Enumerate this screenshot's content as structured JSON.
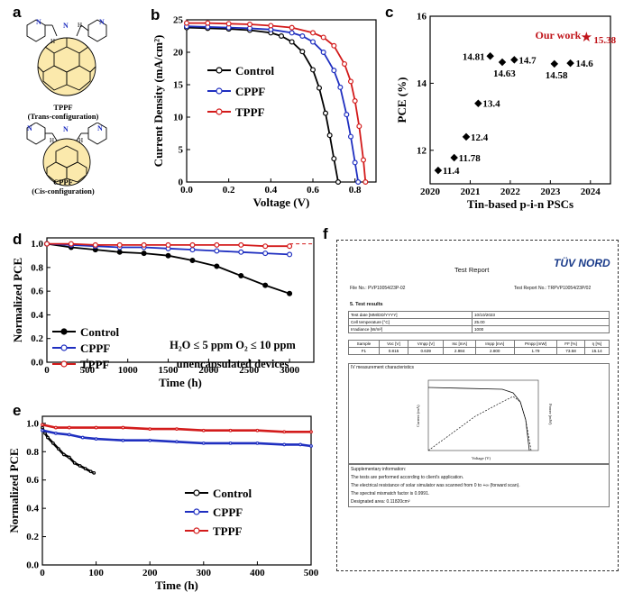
{
  "panels": {
    "a": "a",
    "b": "b",
    "c": "c",
    "d": "d",
    "e": "e",
    "f": "f"
  },
  "molecules": {
    "tppf": {
      "name": "TPPF",
      "config": "(Trans-configuration)"
    },
    "cppf": {
      "name": "CPPF",
      "config": "(Cis-configuration)"
    },
    "atom_n": "N",
    "atom_h": "H"
  },
  "chart_data": [
    {
      "id": "b",
      "type": "line",
      "xlabel": "Voltage (V)",
      "ylabel": "Current Density (mA/cm²)",
      "xlim": [
        0,
        0.9
      ],
      "ylim": [
        0,
        25
      ],
      "xticks": [
        "0.0",
        "0.2",
        "0.4",
        "0.6",
        "0.8"
      ],
      "yticks": [
        "0",
        "5",
        "10",
        "15",
        "20",
        "25"
      ],
      "legend_position": "center-left",
      "series": [
        {
          "name": "Control",
          "color": "#000000",
          "marker": "circle-open",
          "x": [
            0,
            0.1,
            0.2,
            0.3,
            0.4,
            0.45,
            0.5,
            0.55,
            0.6,
            0.63,
            0.66,
            0.68,
            0.7,
            0.72
          ],
          "y": [
            23.8,
            23.7,
            23.6,
            23.4,
            23.0,
            22.5,
            21.6,
            20.1,
            17.3,
            14.5,
            10.6,
            7.2,
            3.6,
            0
          ]
        },
        {
          "name": "CPPF",
          "color": "#1f2fc0",
          "marker": "circle-open",
          "x": [
            0,
            0.1,
            0.2,
            0.3,
            0.4,
            0.5,
            0.55,
            0.6,
            0.65,
            0.7,
            0.73,
            0.76,
            0.78,
            0.8,
            0.815
          ],
          "y": [
            24.0,
            23.9,
            23.8,
            23.7,
            23.5,
            23.0,
            22.5,
            21.6,
            20.0,
            17.2,
            14.6,
            10.4,
            7.0,
            3.0,
            0
          ]
        },
        {
          "name": "TPPF",
          "color": "#d31b1b",
          "marker": "circle-open",
          "x": [
            0,
            0.1,
            0.2,
            0.3,
            0.4,
            0.5,
            0.6,
            0.65,
            0.7,
            0.75,
            0.78,
            0.8,
            0.82,
            0.84,
            0.85
          ],
          "y": [
            24.5,
            24.5,
            24.4,
            24.3,
            24.1,
            23.8,
            23.0,
            22.3,
            21.0,
            18.2,
            15.5,
            12.5,
            8.6,
            3.4,
            0
          ]
        }
      ]
    },
    {
      "id": "c",
      "type": "scatter",
      "xlabel": "Tin-based p-i-n PSCs",
      "ylabel": "PCE (%)",
      "xlim": [
        2020,
        2024.5
      ],
      "ylim": [
        11,
        16
      ],
      "xticks": [
        "2020",
        "2021",
        "2022",
        "2023",
        "2024"
      ],
      "yticks": [
        "12",
        "14",
        "16"
      ],
      "points": [
        {
          "x": 2020.2,
          "y": 11.4,
          "label": "11.4"
        },
        {
          "x": 2020.6,
          "y": 11.78,
          "label": "11.78"
        },
        {
          "x": 2020.9,
          "y": 12.4,
          "label": "12.4"
        },
        {
          "x": 2021.2,
          "y": 13.4,
          "label": "13.4"
        },
        {
          "x": 2021.5,
          "y": 14.81,
          "label": "14.81"
        },
        {
          "x": 2021.8,
          "y": 14.63,
          "label": "14.63"
        },
        {
          "x": 2022.1,
          "y": 14.7,
          "label": "14.7"
        },
        {
          "x": 2023.1,
          "y": 14.58,
          "label": "14.58"
        },
        {
          "x": 2023.5,
          "y": 14.6,
          "label": "14.6"
        }
      ],
      "highlight": {
        "x": 2023.9,
        "y": 15.38,
        "label": "15.38",
        "annotation": "Our work",
        "color": "#c0151b"
      }
    },
    {
      "id": "d",
      "type": "line",
      "xlabel": "Time (h)",
      "ylabel": "Normalized PCE",
      "xlim": [
        0,
        3300
      ],
      "ylim": [
        0,
        1.05
      ],
      "xticks": [
        "0",
        "500",
        "1000",
        "1500",
        "2000",
        "2500",
        "3000"
      ],
      "yticks": [
        "0.0",
        "0.2",
        "0.4",
        "0.6",
        "0.8",
        "1.0"
      ],
      "legend_position": "bottom-left",
      "annotation_lines": [
        "H₂O ≤ 5 ppm O₂ ≤ 10 ppm",
        "unencapsulated devices"
      ],
      "series": [
        {
          "name": "Control",
          "color": "#000000",
          "marker": "circle-filled",
          "x": [
            0,
            300,
            600,
            900,
            1200,
            1500,
            1800,
            2100,
            2400,
            2700,
            3000
          ],
          "y": [
            1.0,
            0.97,
            0.95,
            0.93,
            0.92,
            0.9,
            0.86,
            0.81,
            0.73,
            0.65,
            0.58
          ]
        },
        {
          "name": "CPPF",
          "color": "#1f2fc0",
          "marker": "circle-open",
          "x": [
            0,
            300,
            600,
            900,
            1200,
            1500,
            1800,
            2100,
            2400,
            2700,
            3000
          ],
          "y": [
            1.0,
            0.99,
            0.98,
            0.97,
            0.97,
            0.96,
            0.95,
            0.94,
            0.93,
            0.92,
            0.91
          ]
        },
        {
          "name": "TPPF",
          "color": "#d31b1b",
          "marker": "circle-open",
          "x": [
            0,
            300,
            600,
            900,
            1200,
            1500,
            1800,
            2100,
            2400,
            2700,
            3000
          ],
          "y": [
            1.0,
            1.0,
            0.99,
            0.99,
            0.99,
            0.99,
            0.99,
            0.99,
            0.99,
            0.98,
            0.98
          ]
        }
      ]
    },
    {
      "id": "e",
      "type": "line",
      "xlabel": "Time (h)",
      "ylabel": "Normalized PCE",
      "xlim": [
        0,
        500
      ],
      "ylim": [
        0,
        1.05
      ],
      "xticks": [
        "0",
        "100",
        "200",
        "300",
        "400",
        "500"
      ],
      "yticks": [
        "0.0",
        "0.2",
        "0.4",
        "0.6",
        "0.8",
        "1.0"
      ],
      "legend_position": "center-right",
      "series": [
        {
          "name": "Control",
          "color": "#000000",
          "marker": "circle-open",
          "x": [
            0,
            5,
            10,
            20,
            30,
            40,
            50,
            60,
            70,
            80,
            90,
            96
          ],
          "y": [
            0.97,
            0.93,
            0.9,
            0.86,
            0.82,
            0.78,
            0.76,
            0.72,
            0.7,
            0.68,
            0.66,
            0.65
          ]
        },
        {
          "name": "CPPF",
          "color": "#1f2fc0",
          "marker": "circle-open",
          "x": [
            0,
            25,
            50,
            75,
            100,
            150,
            200,
            250,
            300,
            350,
            400,
            450,
            480,
            500
          ],
          "y": [
            0.95,
            0.93,
            0.92,
            0.9,
            0.89,
            0.88,
            0.88,
            0.87,
            0.86,
            0.86,
            0.86,
            0.85,
            0.85,
            0.84
          ]
        },
        {
          "name": "TPPF",
          "color": "#d31b1b",
          "marker": "circle-open",
          "x": [
            0,
            25,
            50,
            100,
            150,
            200,
            250,
            300,
            350,
            400,
            450,
            500
          ],
          "y": [
            0.99,
            0.97,
            0.97,
            0.97,
            0.97,
            0.96,
            0.96,
            0.95,
            0.95,
            0.95,
            0.94,
            0.94
          ]
        }
      ]
    }
  ],
  "report": {
    "title": "Test Report",
    "logo": "TÜV NORD",
    "file_no": "File No.: PVP10054/23P-02",
    "report_no": "Test Report No.: TRPVP10054/23P/02",
    "section": "5.  Test results",
    "rows": [
      {
        "label": "Test date [MM/DD/YYYY]",
        "value": "10/10/2023"
      },
      {
        "label": "Cell temperature [°C]",
        "value": "25.00"
      },
      {
        "label": "Irradiance [W/m²]",
        "value": "1000"
      }
    ],
    "table_header": [
      "Sample",
      "Voc [V]",
      "Vmpp [V]",
      "Isc [mA]",
      "Impp [mA]",
      "Pmpp [mW]",
      "FF [%]",
      "η [%]"
    ],
    "table_row": [
      "F1",
      "0.815",
      "0.639",
      "2.984",
      "2.800",
      "1.79",
      "73.58",
      "15.14"
    ],
    "iv_title": "IV measurement characteristics",
    "iv_xlabel": "Voltage (V)",
    "iv_ylabel_left": "Current (mA)",
    "iv_ylabel_right": "Power (mW)",
    "supp": [
      "Supplementary information:",
      "The tests are performed according to client's application.",
      "The electrical resistance of solar simulator was scanned from 0 to +∞ (forward scan).",
      "The spectral mismatch factor is 0.9991.",
      "Designated area: 0.11820cm²"
    ]
  }
}
